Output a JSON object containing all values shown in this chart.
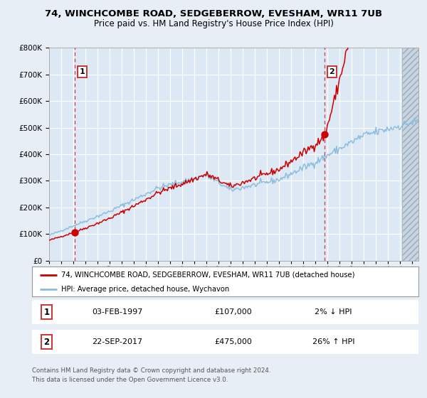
{
  "title_line1": "74, WINCHCOMBE ROAD, SEDGEBERROW, EVESHAM, WR11 7UB",
  "title_line2": "Price paid vs. HM Land Registry's House Price Index (HPI)",
  "legend_line1": "74, WINCHCOMBE ROAD, SEDGEBERROW, EVESHAM, WR11 7UB (detached house)",
  "legend_line2": "HPI: Average price, detached house, Wychavon",
  "annotation1_date": "03-FEB-1997",
  "annotation1_price": "£107,000",
  "annotation1_hpi": "2% ↓ HPI",
  "annotation2_date": "22-SEP-2017",
  "annotation2_price": "£475,000",
  "annotation2_hpi": "26% ↑ HPI",
  "sale1_x": 1997.09,
  "sale1_y": 107000,
  "sale2_x": 2017.73,
  "sale2_y": 475000,
  "ylim": [
    0,
    800000
  ],
  "xlim_start": 1995.0,
  "xlim_end": 2025.5,
  "hatch_start": 2024.17,
  "footer_line1": "Contains HM Land Registry data © Crown copyright and database right 2024.",
  "footer_line2": "This data is licensed under the Open Government Licence v3.0.",
  "bg_color": "#e8eef5",
  "plot_bg_color": "#dce8f4",
  "red_line_color": "#cc0000",
  "blue_line_color": "#88bbdd",
  "grid_color": "#ffffff",
  "hatch_bg_color": "#c8d4e0"
}
